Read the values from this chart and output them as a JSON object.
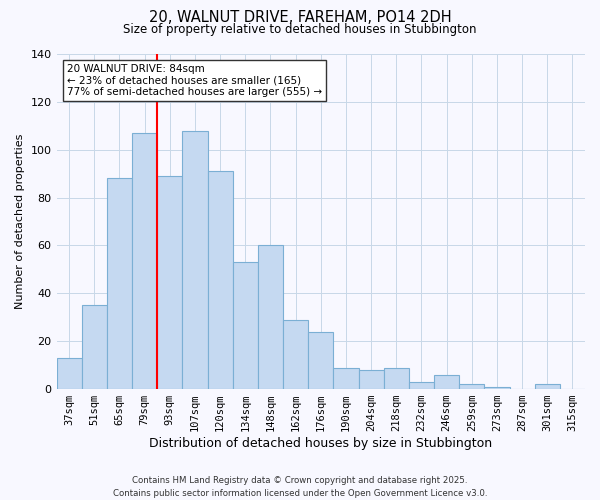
{
  "title": "20, WALNUT DRIVE, FAREHAM, PO14 2DH",
  "subtitle": "Size of property relative to detached houses in Stubbington",
  "xlabel": "Distribution of detached houses by size in Stubbington",
  "ylabel": "Number of detached properties",
  "bar_labels": [
    "37sqm",
    "51sqm",
    "65sqm",
    "79sqm",
    "93sqm",
    "107sqm",
    "120sqm",
    "134sqm",
    "148sqm",
    "162sqm",
    "176sqm",
    "190sqm",
    "204sqm",
    "218sqm",
    "232sqm",
    "246sqm",
    "259sqm",
    "273sqm",
    "287sqm",
    "301sqm",
    "315sqm"
  ],
  "bar_values": [
    13,
    35,
    88,
    107,
    89,
    108,
    91,
    53,
    60,
    29,
    24,
    9,
    8,
    9,
    3,
    6,
    2,
    1,
    0,
    2,
    0
  ],
  "bar_color": "#c5d9f1",
  "bar_edge_color": "#7bafd4",
  "red_line_index": 3,
  "annotation_title": "20 WALNUT DRIVE: 84sqm",
  "annotation_line1": "← 23% of detached houses are smaller (165)",
  "annotation_line2": "77% of semi-detached houses are larger (555) →",
  "annotation_box_color": "#ffffff",
  "annotation_box_edge": "#333333",
  "ylim": [
    0,
    140
  ],
  "background_color": "#f8f8ff",
  "footer1": "Contains HM Land Registry data © Crown copyright and database right 2025.",
  "footer2": "Contains public sector information licensed under the Open Government Licence v3.0."
}
